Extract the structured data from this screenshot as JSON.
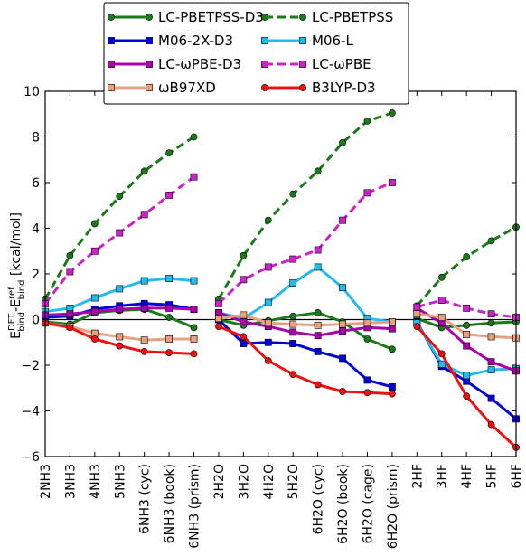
{
  "chart_data": {
    "type": "line",
    "title": "",
    "xlabel": "",
    "ylabel": {
      "main": "E",
      "sup1": "DFT",
      "sub1": "bind",
      "sep": "-E",
      "sup2": "ref",
      "sub2": "bind",
      "unit": " [kcal/mol]"
    },
    "ylim": [
      -6,
      10
    ],
    "yticks": [
      "−6",
      "−4",
      "−2",
      "0",
      "2",
      "4",
      "6",
      "8",
      "10"
    ],
    "ytick_values": [
      -6,
      -4,
      -2,
      0,
      2,
      4,
      6,
      8,
      10
    ],
    "categories": [
      "2NH3",
      "3NH3",
      "4NH3",
      "5NH3",
      "6NH3 (cyc)",
      "6NH3 (book)",
      "6NH3 (prism)",
      "2H2O",
      "3H2O",
      "4H2O",
      "5H2O",
      "6H2O (cyc)",
      "6H2O (book)",
      "6H2O (cage)",
      "6H2O (prism)",
      "2HF",
      "3HF",
      "4HF",
      "5HF",
      "6HF"
    ],
    "groups": [
      [
        0,
        6
      ],
      [
        7,
        14
      ],
      [
        15,
        19
      ]
    ],
    "zero_line": true,
    "legend_position": "top-center",
    "series": [
      {
        "name": "LC-PBETPSS-D3",
        "color": "#1a7a1a",
        "dash": "solid",
        "marker": "circle",
        "values": [
          -0.1,
          -0.2,
          0.3,
          0.4,
          0.45,
          0.1,
          -0.35,
          0.0,
          -0.25,
          -0.05,
          0.15,
          0.3,
          -0.1,
          -0.85,
          -1.3,
          0.05,
          -0.35,
          -0.25,
          -0.15,
          -0.1
        ]
      },
      {
        "name": "LC-PBETPSS",
        "color": "#1a7a1a",
        "dash": "dashed",
        "marker": "circle",
        "values": [
          0.9,
          2.8,
          4.2,
          5.4,
          6.5,
          7.3,
          8.0,
          0.9,
          2.8,
          4.35,
          5.5,
          6.5,
          7.75,
          8.7,
          9.05,
          0.6,
          1.85,
          2.75,
          3.45,
          4.05
        ]
      },
      {
        "name": "M06-2X-D3",
        "color": "#0000dd",
        "dash": "solid",
        "marker": "square",
        "values": [
          0.1,
          0.15,
          0.45,
          0.6,
          0.7,
          0.65,
          0.45,
          0.0,
          -1.05,
          -1.0,
          -1.05,
          -1.4,
          -1.7,
          -2.65,
          -2.95,
          -0.1,
          -2.05,
          -2.7,
          -3.45,
          -4.35
        ]
      },
      {
        "name": "M06-L",
        "color": "#22bbee",
        "dash": "solid",
        "marker": "square",
        "values": [
          0.35,
          0.5,
          0.95,
          1.35,
          1.7,
          1.8,
          1.7,
          0.3,
          0.05,
          0.75,
          1.6,
          2.3,
          1.4,
          0.05,
          -0.1,
          -0.15,
          -1.95,
          -2.45,
          -2.2,
          -2.15
        ]
      },
      {
        "name": "LC-ωPBE-D3",
        "color": "#aa00aa",
        "dash": "solid",
        "marker": "square",
        "values": [
          0.2,
          0.25,
          0.35,
          0.45,
          0.5,
          0.5,
          0.45,
          0.3,
          -0.1,
          -0.3,
          -0.55,
          -0.7,
          -0.5,
          -0.35,
          -0.4,
          0.5,
          -0.15,
          -1.15,
          -1.85,
          -2.25
        ]
      },
      {
        "name": "LC-ωPBE",
        "color": "#cc22cc",
        "dash": "dashed",
        "marker": "square",
        "values": [
          0.7,
          2.1,
          3.0,
          3.8,
          4.6,
          5.45,
          6.25,
          0.7,
          1.75,
          2.3,
          2.65,
          3.05,
          4.35,
          5.55,
          6.0,
          0.55,
          0.85,
          0.5,
          0.25,
          0.1
        ]
      },
      {
        "name": "ωB97XD",
        "color": "#e8a080",
        "dash": "solid",
        "marker": "square",
        "values": [
          -0.15,
          -0.3,
          -0.6,
          -0.75,
          -0.9,
          -0.85,
          -0.85,
          0.05,
          0.2,
          -0.15,
          -0.2,
          -0.25,
          -0.2,
          -0.15,
          -0.1,
          0.25,
          0.1,
          -0.65,
          -0.75,
          -0.8
        ]
      },
      {
        "name": "B3LYP-D3",
        "color": "#ee1111",
        "dash": "solid",
        "marker": "circle",
        "values": [
          -0.15,
          -0.35,
          -0.85,
          -1.15,
          -1.4,
          -1.45,
          -1.5,
          -0.3,
          -0.75,
          -1.8,
          -2.4,
          -2.85,
          -3.15,
          -3.2,
          -3.25,
          -0.3,
          -1.5,
          -3.35,
          -4.6,
          -5.6
        ]
      }
    ]
  }
}
